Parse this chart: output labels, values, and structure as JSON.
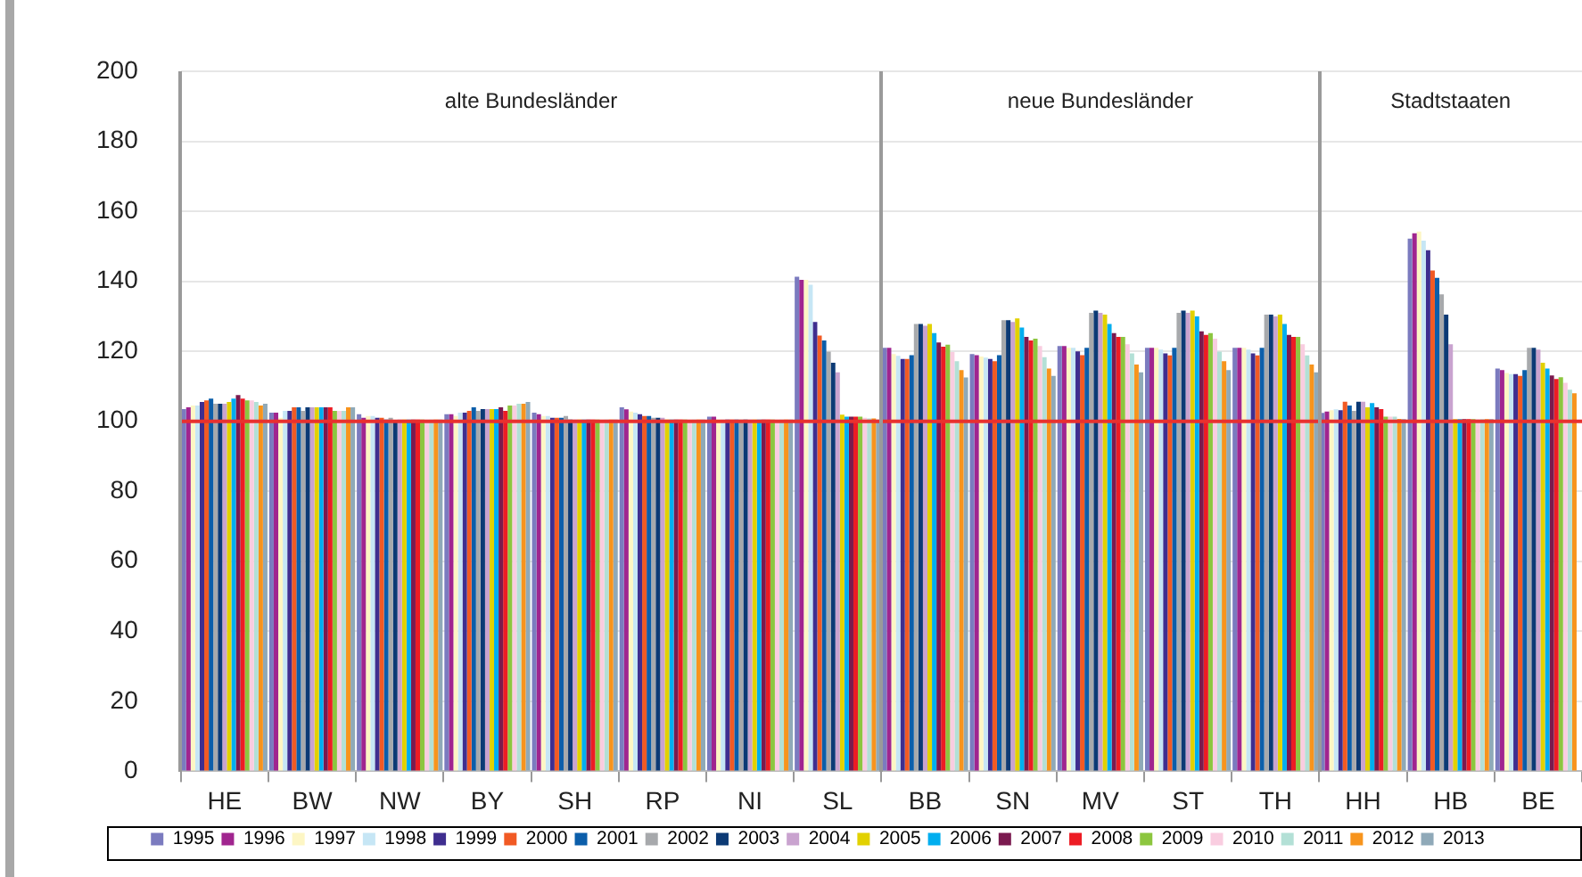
{
  "chart_data": {
    "type": "bar",
    "categories": [
      "HE",
      "BW",
      "NW",
      "BY",
      "SH",
      "RP",
      "NI",
      "SL",
      "BB",
      "SN",
      "MV",
      "ST",
      "TH",
      "HH",
      "HB",
      "BE"
    ],
    "ylim": [
      0,
      200
    ],
    "yticks": [
      0,
      20,
      40,
      60,
      80,
      100,
      120,
      140,
      160,
      180,
      200
    ],
    "grid": "y",
    "legend": "bottom",
    "ref_lines": [
      {
        "axis": "y",
        "value": 100,
        "color": "#e8312f"
      }
    ],
    "annotations": [
      "alte Bundesländer",
      "neue Bundesländer",
      "Stadtstaaten"
    ],
    "series": [
      {
        "name": "1995",
        "color": "#7b7bbf",
        "values": [
          103.5,
          102.5,
          102,
          102,
          102.5,
          104,
          101.3,
          141.3,
          121,
          119.2,
          121.5,
          121,
          121,
          102.4,
          152.2,
          115.1
        ]
      },
      {
        "name": "1996",
        "color": "#a0258f",
        "values": [
          104,
          102.5,
          101,
          102,
          102,
          103.4,
          101.3,
          140.4,
          121,
          118.9,
          121.5,
          121,
          121,
          102.8,
          153.7,
          114.6
        ]
      },
      {
        "name": "1997",
        "color": "#fdf6c4",
        "values": [
          104.5,
          101,
          101.5,
          101.5,
          101.5,
          102.8,
          100.5,
          140.4,
          119.2,
          118.5,
          121,
          121,
          121,
          103.2,
          154.2,
          113.8
        ]
      },
      {
        "name": "1998",
        "color": "#c6e6f5",
        "values": [
          104.5,
          103,
          101.5,
          102.5,
          101.5,
          102.5,
          100.5,
          139,
          118.7,
          118.2,
          121,
          120.5,
          120.5,
          103.4,
          151.6,
          113.5
        ]
      },
      {
        "name": "1999",
        "color": "#3f2e8f",
        "values": [
          105.5,
          103,
          101,
          102.5,
          101,
          102,
          100.5,
          128.4,
          117.8,
          117.8,
          120,
          119.4,
          119.4,
          103.2,
          148.9,
          113.5
        ]
      },
      {
        "name": "2000",
        "color": "#f15a24",
        "values": [
          106,
          104,
          101,
          103,
          101,
          101.5,
          100.5,
          124.5,
          117.8,
          117.2,
          118.9,
          118.8,
          118.8,
          105.6,
          143.1,
          113
        ]
      },
      {
        "name": "2001",
        "color": "#0b5eaa",
        "values": [
          106.5,
          104,
          100.5,
          104,
          101,
          101.5,
          100.5,
          123.1,
          118.9,
          118.9,
          121,
          121,
          121,
          104.5,
          141,
          114.6
        ]
      },
      {
        "name": "2002",
        "color": "#a7a9ac",
        "values": [
          105,
          103,
          101,
          103,
          101.5,
          101,
          100.5,
          119.9,
          127.8,
          128.9,
          131,
          131,
          130.5,
          103,
          136.3,
          121
        ]
      },
      {
        "name": "2003",
        "color": "#0c3a75",
        "values": [
          105,
          104,
          100,
          103.5,
          100.5,
          101,
          100.5,
          116.7,
          127.8,
          128.9,
          131.6,
          131.6,
          130.5,
          105.6,
          130.5,
          121
        ]
      },
      {
        "name": "2004",
        "color": "#c9a3cf",
        "values": [
          105,
          104,
          100.5,
          103.5,
          100.5,
          101,
          100.5,
          114,
          127.3,
          128.4,
          131,
          131,
          130,
          105.6,
          122,
          120.5
        ]
      },
      {
        "name": "2005",
        "color": "#e2d100",
        "values": [
          105.5,
          104,
          100.5,
          103.5,
          100.5,
          100.5,
          100.5,
          101.9,
          127.8,
          129.4,
          130.5,
          131.6,
          130.5,
          104,
          100.6,
          116.7
        ]
      },
      {
        "name": "2006",
        "color": "#00aeef",
        "values": [
          106.5,
          104,
          100.5,
          103.5,
          100.5,
          100.5,
          100.5,
          101.3,
          125.2,
          126.8,
          127.8,
          130,
          127.8,
          105.2,
          100.6,
          115.1
        ]
      },
      {
        "name": "2007",
        "color": "#7a1a4f",
        "values": [
          107.5,
          104,
          100.5,
          104,
          100.5,
          100.5,
          100.5,
          101.3,
          122.5,
          124.1,
          125.2,
          125.7,
          124.7,
          104,
          100.6,
          113.1
        ]
      },
      {
        "name": "2008",
        "color": "#ed1c24",
        "values": [
          106.5,
          104,
          100.5,
          103,
          100.5,
          100.5,
          100.5,
          101.3,
          121.3,
          123.1,
          124.1,
          124.7,
          124.1,
          103.5,
          100.6,
          112.1
        ]
      },
      {
        "name": "2009",
        "color": "#8cc63f",
        "values": [
          106,
          103,
          100.5,
          104.5,
          100.5,
          100.5,
          100.5,
          101.3,
          121.9,
          123.6,
          124.1,
          125.2,
          124.1,
          101.3,
          100.6,
          112.6
        ]
      },
      {
        "name": "2010",
        "color": "#f9cde0",
        "values": [
          106,
          103,
          100.5,
          104.5,
          100.5,
          100.5,
          100.5,
          101,
          119.8,
          121.5,
          122,
          123.6,
          122,
          101.3,
          100.6,
          111
        ]
      },
      {
        "name": "2011",
        "color": "#b3e0d6",
        "values": [
          105.5,
          103,
          100.5,
          105,
          100.5,
          100.5,
          100.5,
          100.8,
          117.2,
          118.3,
          119.4,
          119.9,
          118.8,
          101.3,
          100.6,
          109
        ]
      },
      {
        "name": "2012",
        "color": "#f7941d",
        "values": [
          104.5,
          104,
          100.5,
          105,
          100.5,
          100.5,
          100.5,
          100.8,
          114.6,
          115.1,
          116.2,
          117.2,
          116.2,
          100.7,
          100.6,
          108
        ]
      },
      {
        "name": "2013",
        "color": "#8fa9b8",
        "values": [
          105,
          104,
          100.5,
          105.5,
          100.5,
          100.5,
          100.5,
          100.5,
          112.5,
          113,
          114,
          114.6,
          114,
          100.6,
          100.6,
          null
        ]
      }
    ]
  }
}
